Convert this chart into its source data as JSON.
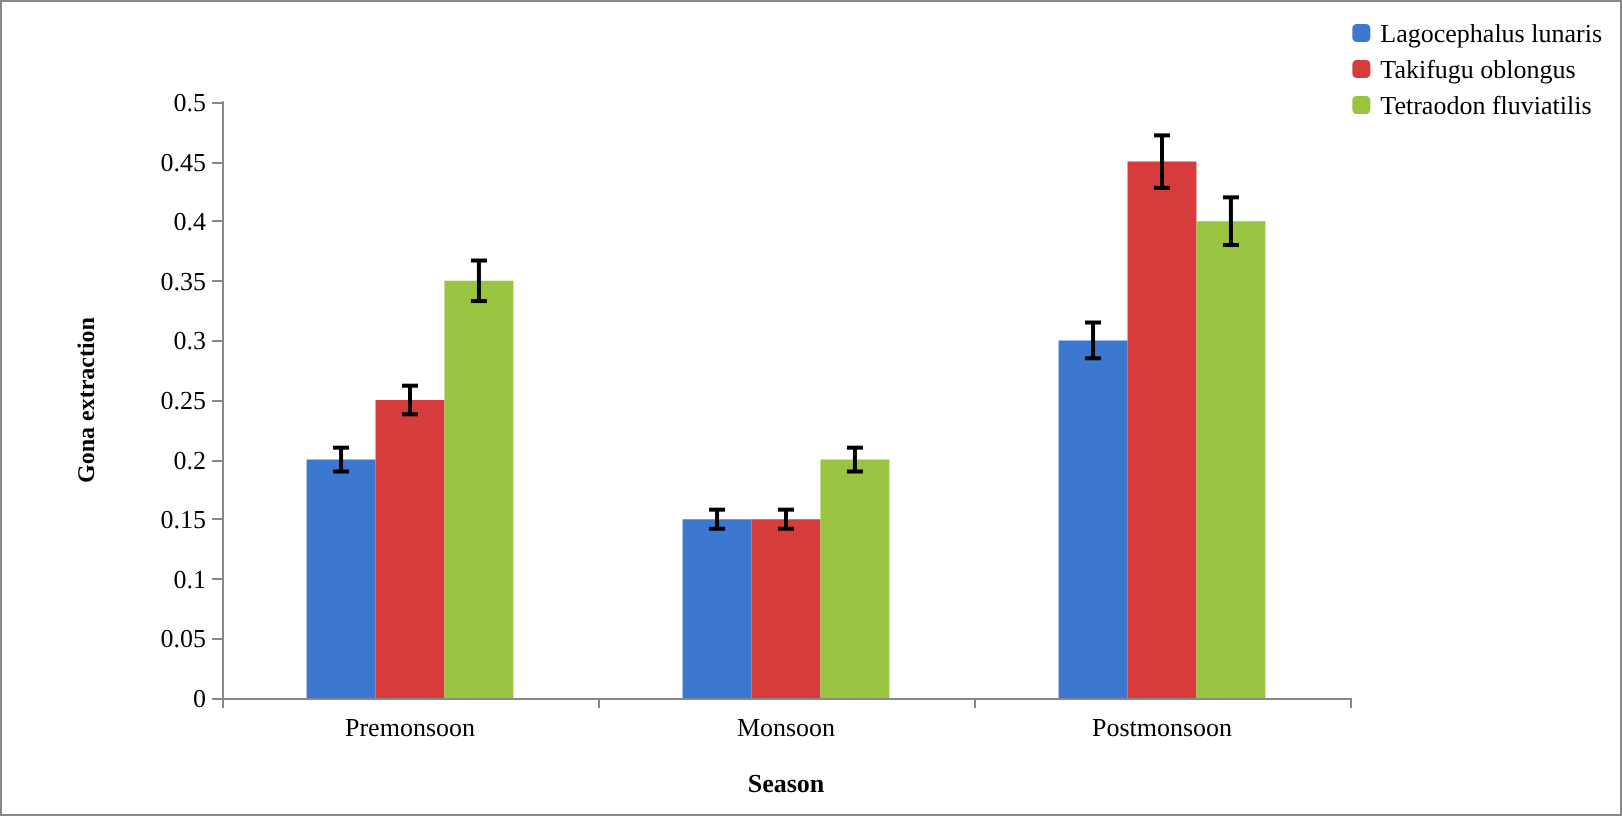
{
  "chart_data": {
    "type": "bar",
    "xlabel": "Season",
    "ylabel": "Gona extraction",
    "categories": [
      "Premonsoon",
      "Monsoon",
      "Postmonsoon"
    ],
    "series": [
      {
        "name": "Lagocephalus lunaris",
        "color": "#3c78d0",
        "values": [
          0.2,
          0.15,
          0.3
        ],
        "errors": [
          0.01,
          0.008,
          0.015
        ]
      },
      {
        "name": "Takifugu oblongus",
        "color": "#d63c3c",
        "values": [
          0.25,
          0.15,
          0.45
        ],
        "errors": [
          0.012,
          0.008,
          0.022
        ]
      },
      {
        "name": "Tetraodon fluviatilis",
        "color": "#98c440",
        "values": [
          0.35,
          0.2,
          0.4
        ],
        "errors": [
          0.017,
          0.01,
          0.02
        ]
      }
    ],
    "ylim": [
      0,
      0.5
    ],
    "yticks": [
      0,
      0.05,
      0.1,
      0.15,
      0.2,
      0.25,
      0.3,
      0.35,
      0.4,
      0.45,
      0.5
    ],
    "grid": false,
    "legend": "top right"
  }
}
